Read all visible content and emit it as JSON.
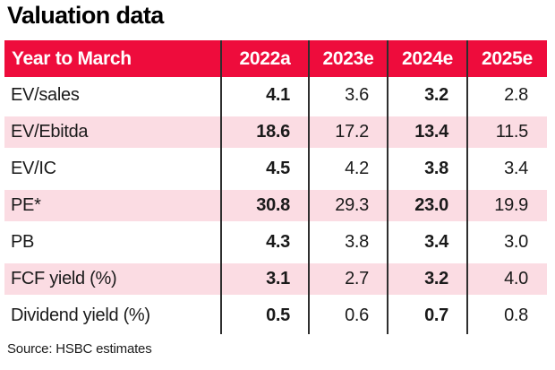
{
  "title": "Valuation data",
  "source": "Source: HSBC estimates",
  "colors": {
    "header_bg": "#ee0c3c",
    "header_text": "#ffffff",
    "alt_row_bg": "#fbdce3",
    "divider": "#2e2e2e",
    "text": "#111111",
    "background": "#ffffff"
  },
  "chart_data": {
    "type": "table",
    "title": "Valuation data",
    "columns": [
      "Year to March",
      "2022a",
      "2023e",
      "2024e",
      "2025e"
    ],
    "rows": [
      {
        "label": "EV/sales",
        "values": [
          "4.1",
          "3.6",
          "3.2",
          "2.8"
        ]
      },
      {
        "label": "EV/Ebitda",
        "values": [
          "18.6",
          "17.2",
          "13.4",
          "11.5"
        ]
      },
      {
        "label": "EV/IC",
        "values": [
          "4.5",
          "4.2",
          "3.8",
          "3.4"
        ]
      },
      {
        "label": "PE*",
        "values": [
          "30.8",
          "29.3",
          "23.0",
          "19.9"
        ]
      },
      {
        "label": "PB",
        "values": [
          "4.3",
          "3.8",
          "3.4",
          "3.0"
        ]
      },
      {
        "label": "FCF yield (%)",
        "values": [
          "3.1",
          "2.7",
          "3.2",
          "4.0"
        ]
      },
      {
        "label": "Dividend yield (%)",
        "values": [
          "0.5",
          "0.6",
          "0.7",
          "0.8"
        ]
      }
    ],
    "source": "Source: HSBC estimates",
    "layout": {
      "bold_value_columns": [
        "2022a",
        "2024e"
      ],
      "shaded_row_indices": [
        1,
        3,
        5
      ],
      "shading": "light pink",
      "column_dividers": "dark vertical lines between all columns",
      "header_style": "red background, white bold text"
    }
  }
}
